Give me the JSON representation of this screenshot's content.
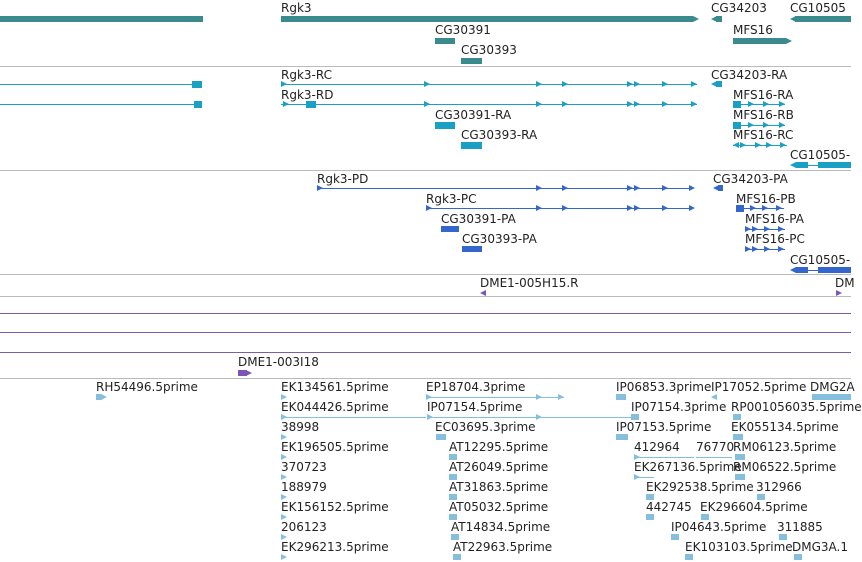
{
  "colors": {
    "gene": "#3a8a8e",
    "transcript": "#1aa0c4",
    "peptide": "#3466cc",
    "bac": "#7b56b6",
    "est": "#86bede",
    "separator": "#bbbbbb",
    "track_line": "#7a5ea8"
  },
  "tracks": {
    "genes": {
      "labels": [
        "Rgk3",
        "CG34203",
        "CG10505",
        "CG30391",
        "MFS16",
        "CG30393"
      ]
    },
    "transcripts": {
      "labels": [
        "Rgk3-RC",
        "CG34203-RA",
        "Rgk3-RD",
        "MFS16-RA",
        "CG30391-RA",
        "MFS16-RB",
        "CG30393-RA",
        "MFS16-RC",
        "CG10505-"
      ]
    },
    "peptides": {
      "labels": [
        "Rgk3-PD",
        "CG34203-PA",
        "Rgk3-PC",
        "MFS16-PB",
        "CG30391-PA",
        "MFS16-PA",
        "CG30393-PA",
        "MFS16-PC",
        "CG10505-"
      ]
    },
    "bac_ends": {
      "labels": [
        "DME1-005H15.R",
        "DM"
      ]
    },
    "bacs": {
      "labels": [
        "DME1-003I18"
      ]
    },
    "ests": {
      "labels": [
        "RH54496.5prime",
        "EK134561.5prime",
        "EP18704.3prime",
        "IP06853.3prime",
        "IP17052.5prime",
        "DMG2A",
        "EK044426.5prime",
        "IP07154.5prime",
        "IP07154.3prime",
        "RP001056035.5prime",
        "38998",
        "EC03695.3prime",
        "IP07153.5prime",
        "EK055134.5prime",
        "EK196505.5prime",
        "AT12295.5prime",
        "412964",
        "76770",
        "RM06123.5prime",
        "370723",
        "AT26049.5prime",
        "EK267136.5prime",
        "RM06522.5prime",
        "188979",
        "AT31863.5prime",
        "EK292538.5prime",
        "312966",
        "EK156152.5prime",
        "AT05032.5prime",
        "442745",
        "EK296604.5prime",
        "206123",
        "AT14834.5prime",
        "IP04643.5prime",
        "311885",
        "EK296213.5prime",
        "AT22963.5prime",
        "EK103103.5prime",
        "DMG3A.1"
      ]
    }
  }
}
